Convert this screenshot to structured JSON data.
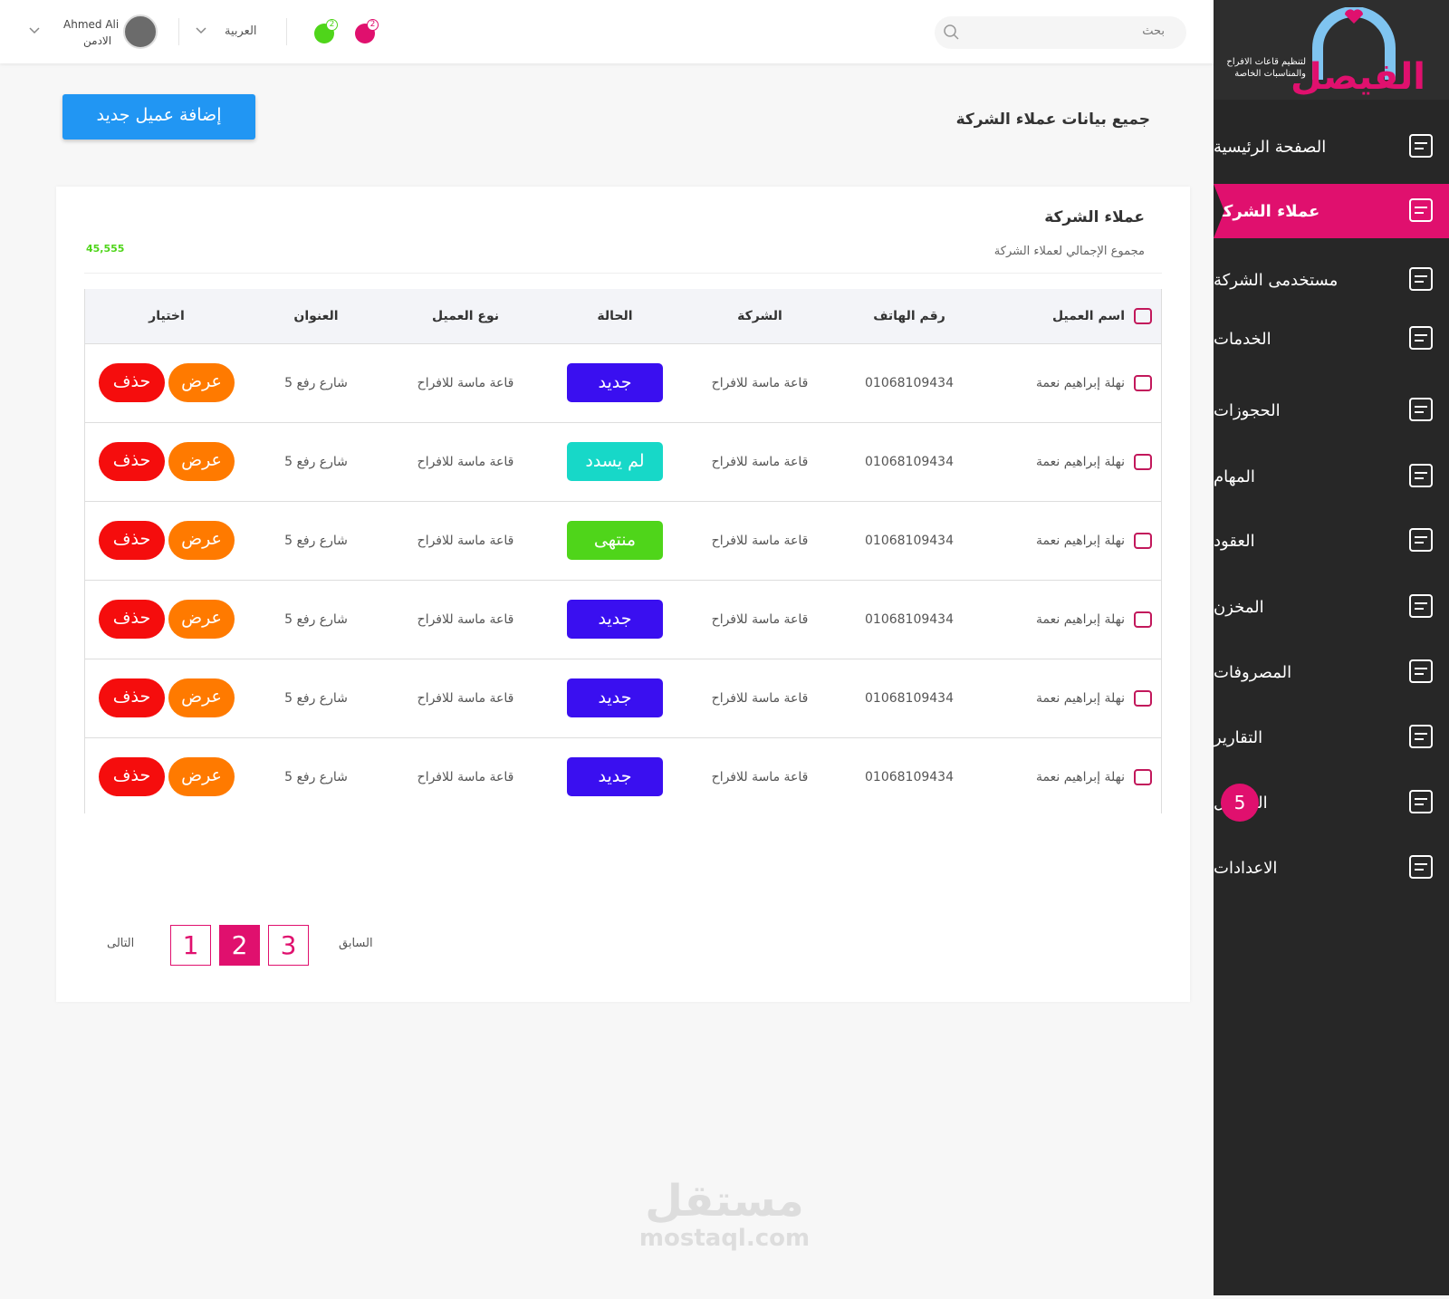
{
  "brand": {
    "name": "الفيصل",
    "tagline": "لتنظيم قاعات الافراح والمناسبات الخاصة"
  },
  "sidebar": [
    {
      "label": "الصفحة الرئيسية"
    },
    {
      "label": "عملاء الشركة",
      "active": true
    },
    {
      "label": "مستخدمى الشركة"
    },
    {
      "label": "الخدمات"
    },
    {
      "label": "الحجوزات"
    },
    {
      "label": "المهام"
    },
    {
      "label": "العقود"
    },
    {
      "label": "المخزن"
    },
    {
      "label": "المصروفات"
    },
    {
      "label": "التقارير"
    },
    {
      "label": "الرسائل",
      "badge": "5"
    },
    {
      "label": "الاعدادات"
    }
  ],
  "topbar": {
    "search_placeholder": "بحث",
    "notifications": "2",
    "messages": "2",
    "language": "العربية",
    "user": {
      "name": "Ahmed Ali",
      "role": "الادمن"
    }
  },
  "page": {
    "title": "جميع بيانات عملاء الشركة",
    "add_button": "إضافة عميل جديد"
  },
  "card": {
    "title": "عملاء الشركة",
    "subtitle": "مجموع الإجمالي لعملاء الشركة",
    "total": "45,555"
  },
  "table": {
    "headers": [
      "اسم العميل",
      "رقم الهاتف",
      "الشركة",
      "الحالة",
      "نوع العميل",
      "العنوان",
      "اختيار"
    ],
    "view": "عرض",
    "delete": "حذف",
    "rows": [
      {
        "name": "نهلة إبراهيم نعمة",
        "phone": "01068109434",
        "company": "قاعة ماسة للافراح",
        "status": "جديد",
        "status_color": "#3a0ff0",
        "type": "قاعة ماسة للافراح",
        "address": "شارع رفع 5"
      },
      {
        "name": "نهلة إبراهيم نعمة",
        "phone": "01068109434",
        "company": "قاعة ماسة للافراح",
        "status": "لم يسدد",
        "status_color": "#17d8c8",
        "type": "قاعة ماسة للافراح",
        "address": "شارع رفع 5"
      },
      {
        "name": "نهلة إبراهيم نعمة",
        "phone": "01068109434",
        "company": "قاعة ماسة للافراح",
        "status": "منتهى",
        "status_color": "#4fd51a",
        "type": "قاعة ماسة للافراح",
        "address": "شارع رفع 5"
      },
      {
        "name": "نهلة إبراهيم نعمة",
        "phone": "01068109434",
        "company": "قاعة ماسة للافراح",
        "status": "جديد",
        "status_color": "#3a0ff0",
        "type": "قاعة ماسة للافراح",
        "address": "شارع رفع 5"
      },
      {
        "name": "نهلة إبراهيم نعمة",
        "phone": "01068109434",
        "company": "قاعة ماسة للافراح",
        "status": "جديد",
        "status_color": "#3a0ff0",
        "type": "قاعة ماسة للافراح",
        "address": "شارع رفع 5"
      },
      {
        "name": "نهلة إبراهيم نعمة",
        "phone": "01068109434",
        "company": "قاعة ماسة للافراح",
        "status": "جديد",
        "status_color": "#3a0ff0",
        "type": "قاعة ماسة للافراح",
        "address": "شارع رفع 5"
      }
    ]
  },
  "pagination": {
    "prev": "السابق",
    "next": "التالى",
    "pages": [
      "1",
      "2",
      "3"
    ],
    "current": 1
  },
  "watermark": {
    "text": "مستقل",
    "url": "mostaql.com"
  }
}
